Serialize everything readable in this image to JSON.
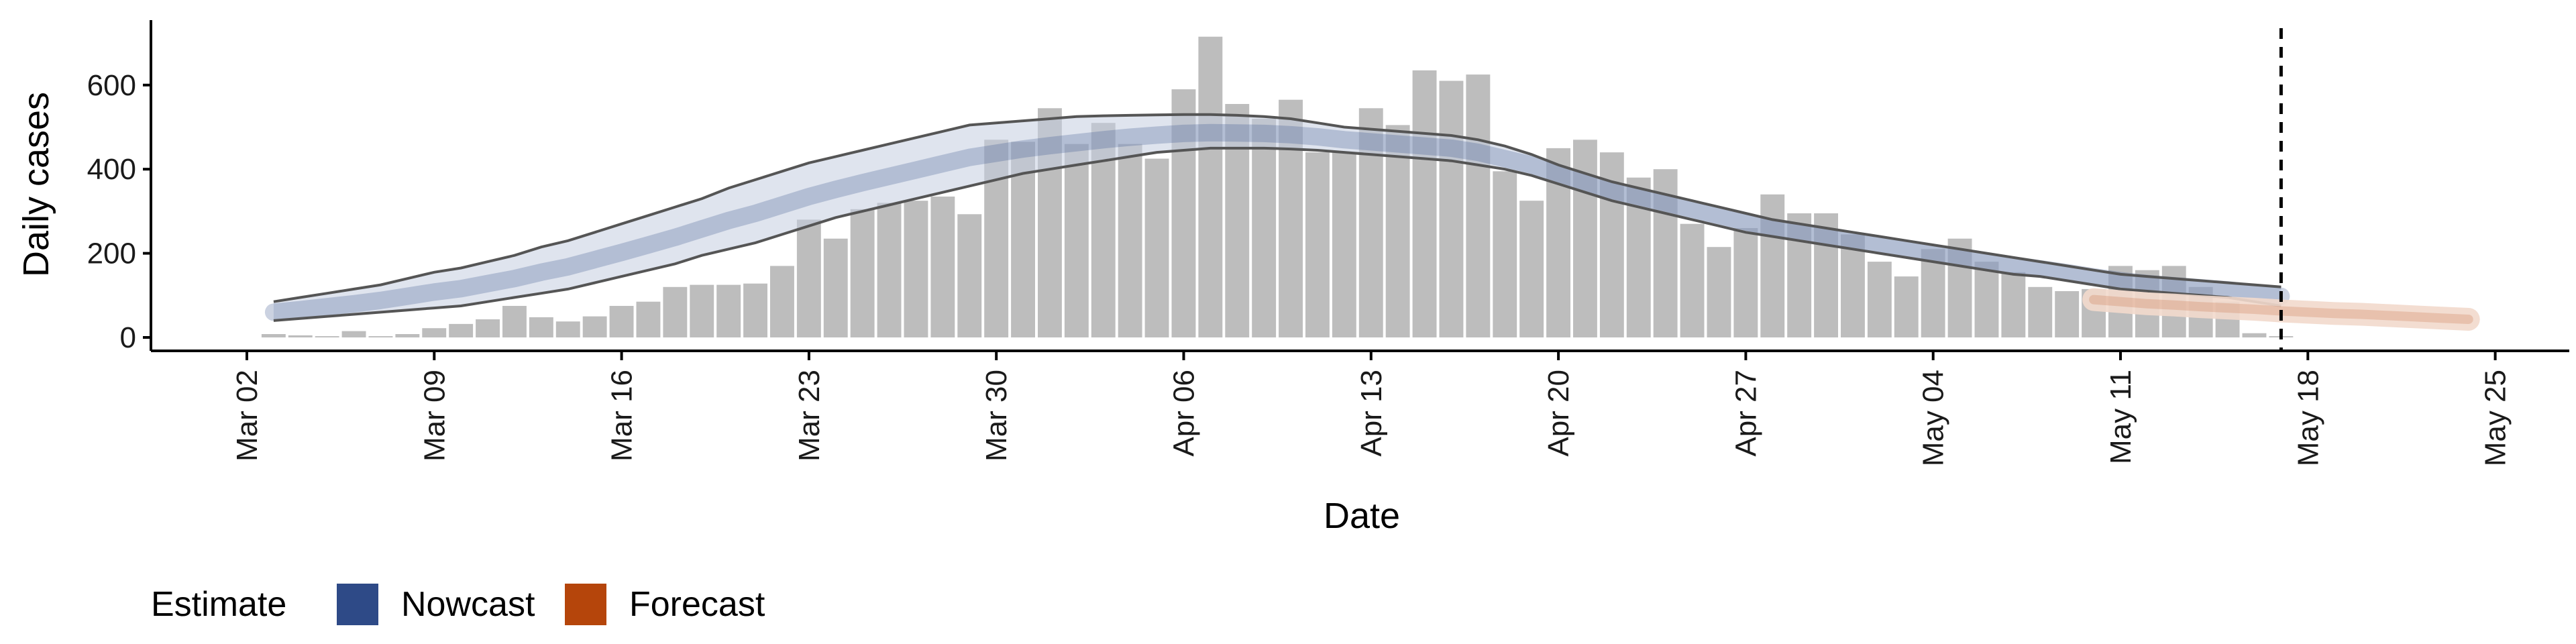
{
  "chart_data": {
    "type": "bar",
    "xlabel": "Date",
    "ylabel": "Daily cases",
    "ylim": [
      0,
      700
    ],
    "y_ticks": [
      0,
      200,
      400,
      600
    ],
    "x_ticks": [
      "Mar 02",
      "Mar 09",
      "Mar 16",
      "Mar 23",
      "Mar 30",
      "Apr 06",
      "Apr 13",
      "Apr 20",
      "Apr 27",
      "May 04",
      "May 11",
      "May 18",
      "May 25"
    ],
    "x_range_days": [
      -3,
      85
    ],
    "bars": {
      "start_date": "2020-03-02",
      "color": "#bdbdbd",
      "values": [
        8,
        5,
        3,
        15,
        3,
        8,
        22,
        32,
        43,
        75,
        48,
        38,
        50,
        75,
        85,
        120,
        125,
        125,
        128,
        170,
        280,
        235,
        305,
        320,
        325,
        335,
        293,
        470,
        465,
        545,
        460,
        510,
        460,
        425,
        590,
        715,
        555,
        520,
        565,
        440,
        440,
        545,
        505,
        635,
        610,
        625,
        395,
        325,
        450,
        470,
        440,
        380,
        400,
        270,
        215,
        260,
        340,
        295,
        295,
        245,
        180,
        145,
        210,
        235,
        180,
        155,
        120,
        110,
        115,
        170,
        160,
        170,
        120,
        85,
        10,
        3
      ]
    },
    "nowcast": {
      "name": "Nowcast",
      "color": "#2E4A87",
      "band_color": "#c5cde0",
      "start_date": "2020-03-03",
      "upper": [
        85,
        95,
        105,
        115,
        125,
        140,
        155,
        165,
        180,
        195,
        215,
        230,
        250,
        270,
        290,
        310,
        330,
        355,
        375,
        395,
        415,
        430,
        445,
        460,
        475,
        490,
        505,
        510,
        515,
        520,
        525,
        527,
        528,
        529,
        530,
        530,
        528,
        525,
        520,
        510,
        500,
        495,
        490,
        485,
        480,
        470,
        455,
        435,
        410,
        390,
        370,
        355,
        340,
        325,
        310,
        295,
        280,
        270,
        260,
        250,
        240,
        230,
        220,
        210,
        200,
        190,
        180,
        170,
        160,
        150,
        145,
        140,
        135,
        130,
        125,
        120
      ],
      "lower": [
        40,
        45,
        50,
        55,
        60,
        65,
        70,
        75,
        85,
        95,
        105,
        115,
        130,
        145,
        160,
        175,
        195,
        210,
        225,
        245,
        265,
        285,
        300,
        315,
        330,
        345,
        360,
        375,
        390,
        400,
        410,
        420,
        430,
        440,
        445,
        450,
        450,
        450,
        448,
        445,
        440,
        435,
        430,
        425,
        420,
        410,
        400,
        385,
        365,
        345,
        325,
        310,
        295,
        280,
        265,
        250,
        240,
        230,
        220,
        210,
        200,
        190,
        180,
        170,
        160,
        150,
        145,
        135,
        125,
        115,
        110,
        105,
        100,
        95,
        85,
        75
      ],
      "mid": [
        60,
        66,
        73,
        80,
        88,
        98,
        108,
        116,
        128,
        140,
        155,
        168,
        185,
        202,
        220,
        238,
        258,
        278,
        295,
        315,
        335,
        352,
        368,
        383,
        398,
        413,
        428,
        438,
        448,
        456,
        463,
        470,
        476,
        481,
        485,
        487,
        486,
        485,
        482,
        477,
        470,
        465,
        460,
        455,
        450,
        440,
        425,
        410,
        390,
        370,
        350,
        335,
        320,
        305,
        290,
        275,
        262,
        252,
        242,
        232,
        222,
        212,
        202,
        192,
        182,
        172,
        163,
        154,
        144,
        135,
        128,
        123,
        118,
        113,
        106,
        98
      ]
    },
    "forecast": {
      "name": "Forecast",
      "color": "#B5450B",
      "band_color": "#f2d9cc",
      "start_date": "2020-05-10",
      "mid": [
        90,
        85,
        80,
        77,
        73,
        70,
        67,
        63,
        60,
        57,
        55,
        52,
        49,
        46,
        43
      ]
    },
    "vline_date": "2020-05-17",
    "legend": {
      "title": "Estimate",
      "items": [
        {
          "label": "Nowcast",
          "color": "#2E4A87"
        },
        {
          "label": "Forecast",
          "color": "#B5450B"
        }
      ]
    }
  }
}
